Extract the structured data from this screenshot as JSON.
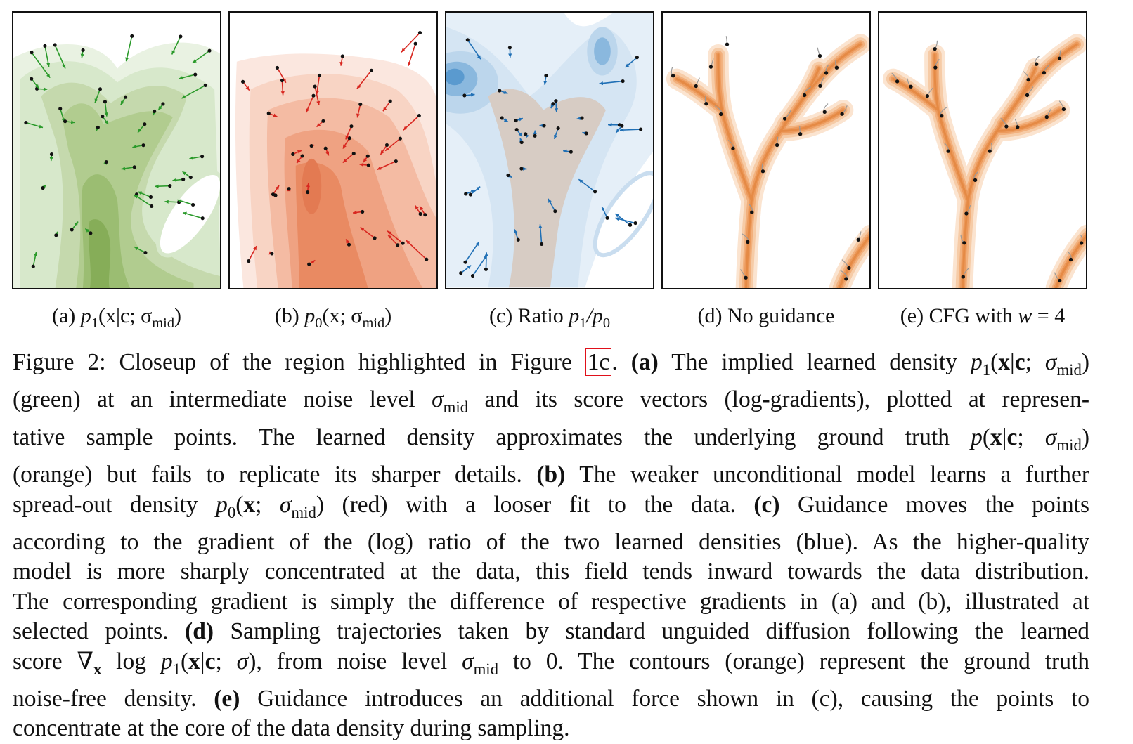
{
  "panels": [
    {
      "id": "a",
      "label_prefix": "(a) ",
      "label_math": "p",
      "label_sub": "1",
      "label_rest": "(x|c; σ",
      "label_sub2": "mid",
      "label_end": ")",
      "contour_color": "#8fb86a",
      "arrow_color": "#2a9a2a"
    },
    {
      "id": "b",
      "label_prefix": "(b) ",
      "label_math": "p",
      "label_sub": "0",
      "label_rest": "(x; σ",
      "label_sub2": "mid",
      "label_end": ")",
      "contour_color": "#e98a62",
      "arrow_color": "#d8261f"
    },
    {
      "id": "c",
      "label_prefix": "(c) Ratio ",
      "label_math": "p",
      "label_sub": "1",
      "label_rest": "/p",
      "label_sub2": "0",
      "label_end": "",
      "contour_color": "#4a90c8",
      "arrow_color": "#1f6fb5"
    },
    {
      "id": "d",
      "label_prefix": "(d) No guidance",
      "contour_color": "#f2b07c"
    },
    {
      "id": "e",
      "label_prefix": "(e) CFG with ",
      "label_math": "w",
      "label_rest": " = 4",
      "contour_color": "#f2b07c"
    }
  ],
  "caption": {
    "lines": [
      "Figure 2: Closeup of the region highlighted in Figure |1c|. (a) The implied learned density p1(x|c; σmid)",
      "(green) at an intermediate noise level σmid and its score vectors (log-gradients), plotted at represen-",
      "tative sample points. The learned density approximates the underlying ground truth p(x|c; σmid)",
      "(orange) but fails to replicate its sharper details. (b) The weaker unconditional model learns a further",
      "spread-out density p0(x; σmid) (red) with a looser fit to the data. (c) Guidance moves the points",
      "according to the gradient of the (log) ratio of the two learned densities (blue). As the higher-quality",
      "model is more sharply concentrated at the data, this field tends inward towards the data distribution.",
      "The corresponding gradient is simply the difference of respective gradients in (a) and (b), illustrated at",
      "selected points. (d) Sampling trajectories taken by standard unguided diffusion following the learned",
      "score ∇x log p1(x|c; σ), from noise level σmid to 0. The contours (orange) represent the ground truth",
      "noise-free density. (e) Guidance introduces an additional force shown in (c), causing the points to",
      "concentrate at the core of the data density during sampling."
    ],
    "fig_label": "Figure 2:",
    "t1": " Closeup of the region highlighted in Figure ",
    "fig_ref": "1c",
    "t2": ". ",
    "a_tag": "(a)",
    "t3": " The implied learned density ",
    "t4": "(green) at an intermediate noise level ",
    "t5": " and its score vectors (log-gradients), plotted at represen-",
    "t6": "tative sample points.  The learned density approximates the underlying ground truth ",
    "t7": "(orange) but fails to replicate its sharper details. ",
    "b_tag": "(b)",
    "t8": " The weaker unconditional model learns a further",
    "t9": "spread-out density ",
    "t10": " (red) with a looser fit to the data. ",
    "c_tag": "(c)",
    "t11": " Guidance moves the points",
    "t12": "according to the gradient of the (log) ratio of the two learned densities (blue). As the higher-quality",
    "t13": "model is more sharply concentrated at the data, this field tends inward towards the data distribution.",
    "t14": "The corresponding gradient is simply the difference of respective gradients in (a) and (b), illustrated at",
    "t15": "selected points. ",
    "d_tag": "(d)",
    "t16": " Sampling trajectories taken by standard unguided diffusion following the learned",
    "t17": "score ",
    "t18": ", from noise level ",
    "t19": " to 0. The contours (orange) represent the ground truth",
    "t20": "noise-free density. ",
    "e_tag": "(e)",
    "t21": " Guidance introduces an additional force shown in (c), causing the points to",
    "t22": "concentrate at the core of the data density during sampling."
  }
}
